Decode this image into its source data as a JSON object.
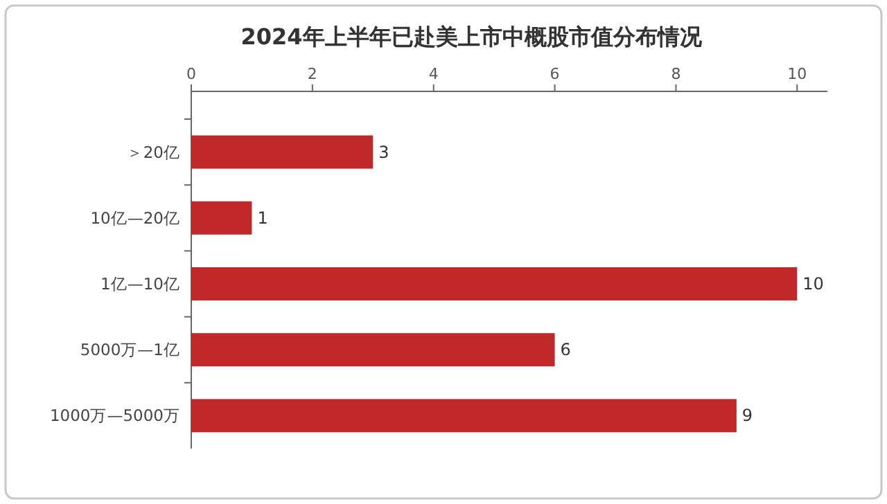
{
  "chart_data": {
    "type": "bar",
    "orientation": "horizontal",
    "title": "2024年上半年已赴美上市中概股市值分布情况",
    "categories": [
      "＞20亿",
      "10亿—20亿",
      "1亿—10亿",
      "5000万—1亿",
      "1000万—5000万"
    ],
    "values": [
      3,
      1,
      10,
      6,
      9
    ],
    "color": "#c0282a",
    "xlim": [
      0,
      10.5
    ],
    "xticks": [
      0,
      2,
      4,
      6,
      8,
      10
    ],
    "data_labels": true,
    "grid": false
  }
}
